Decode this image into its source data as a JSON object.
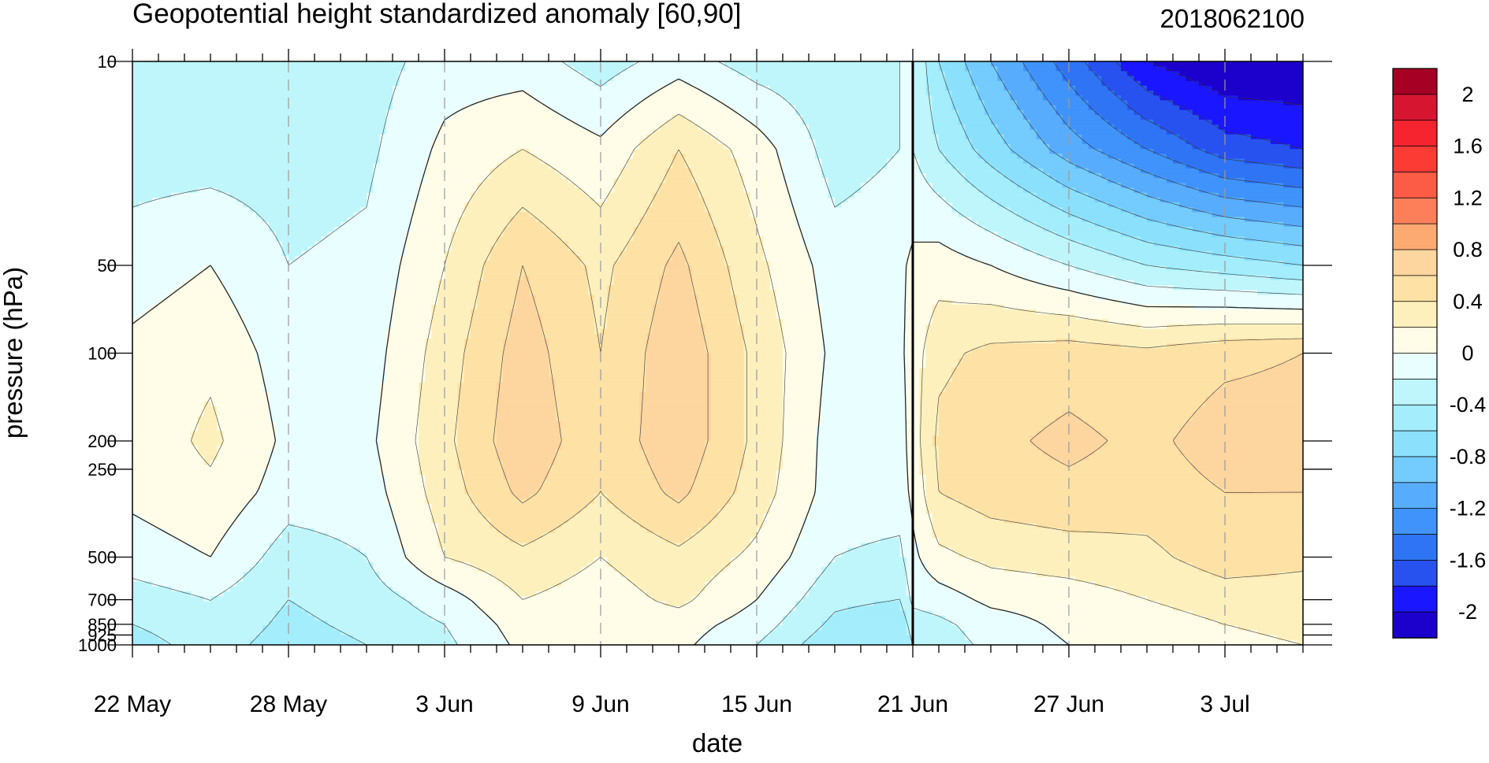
{
  "chart_data": {
    "type": "contour",
    "title": "Geopotential height standardized anomaly [60,90]",
    "date_label": "2018062100",
    "xlabel": "date",
    "ylabel": "pressure (hPa)",
    "x_ticks": [
      {
        "label": "22 May",
        "day": 0
      },
      {
        "label": "28 May",
        "day": 6
      },
      {
        "label": "3 Jun",
        "day": 12
      },
      {
        "label": "9 Jun",
        "day": 18
      },
      {
        "label": "15 Jun",
        "day": 24
      },
      {
        "label": "21 Jun",
        "day": 30
      },
      {
        "label": "27 Jun",
        "day": 36
      },
      {
        "label": "3 Jul",
        "day": 42
      }
    ],
    "x_range_days": [
      0,
      45
    ],
    "current_day": 30,
    "y_ticks": [
      {
        "label": "10",
        "p": 10
      },
      {
        "label": "50",
        "p": 50
      },
      {
        "label": "100",
        "p": 100
      },
      {
        "label": "200",
        "p": 200
      },
      {
        "label": "250",
        "p": 250
      },
      {
        "label": "500",
        "p": 500
      },
      {
        "label": "700",
        "p": 700
      },
      {
        "label": "850",
        "p": 850
      },
      {
        "label": "925",
        "p": 925
      },
      {
        "label": "1000",
        "p": 1000
      }
    ],
    "y_range_hpa": [
      10,
      1000
    ],
    "y_scale": "log",
    "levels": [
      -2.2,
      -2,
      -1.8,
      -1.6,
      -1.4,
      -1.2,
      -1,
      -0.8,
      -0.6,
      -0.4,
      -0.2,
      0,
      0.2,
      0.4,
      0.6,
      0.8,
      1,
      1.2,
      1.4,
      1.6,
      1.8,
      2,
      2.2
    ],
    "colorbar": {
      "colors": [
        "#1c00cc",
        "#1a16ff",
        "#2752f0",
        "#2f74f5",
        "#3f93fb",
        "#58acfd",
        "#74cbfd",
        "#8be0fc",
        "#a3edfd",
        "#bef6fc",
        "#e8feff",
        "#fffde8",
        "#fdf0bd",
        "#fde1a5",
        "#fdd59e",
        "#fdaa72",
        "#fd7f5a",
        "#fc5b46",
        "#fc3b35",
        "#f5242e",
        "#d61630",
        "#a60024"
      ],
      "labels": [
        {
          "text": "2",
          "value": 2
        },
        {
          "text": "1.6",
          "value": 1.6
        },
        {
          "text": "1.2",
          "value": 1.2
        },
        {
          "text": "0.8",
          "value": 0.8
        },
        {
          "text": "0.4",
          "value": 0.4
        },
        {
          "text": "0",
          "value": 0
        },
        {
          "text": "-0.4",
          "value": -0.4
        },
        {
          "text": "-0.8",
          "value": -0.8
        },
        {
          "text": "-1.2",
          "value": -1.2
        },
        {
          "text": "-1.6",
          "value": -1.6
        },
        {
          "text": "-2",
          "value": -2
        }
      ]
    },
    "field": {
      "t": [
        0,
        3,
        6,
        9,
        12,
        15,
        18,
        21,
        24,
        27,
        29.5,
        30,
        31,
        33,
        36,
        39,
        42,
        45
      ],
      "p": [
        10,
        20,
        50,
        100,
        200,
        300,
        500,
        700,
        850,
        1000
      ],
      "z": [
        [
          -0.3,
          -0.4,
          -0.35,
          -0.3,
          -0.1,
          -0.1,
          -0.3,
          -0.1,
          -0.3,
          -0.35,
          -0.2,
          -0.2,
          -0.6,
          -1.0,
          -1.5,
          -2.0,
          -2.2,
          -2.2
        ],
        [
          -0.3,
          -0.3,
          -0.3,
          -0.25,
          0.05,
          0.2,
          0.05,
          0.4,
          0.1,
          -0.3,
          -0.2,
          -0.2,
          -0.4,
          -0.7,
          -1.1,
          -1.4,
          -1.7,
          -1.8
        ],
        [
          -0.1,
          0.0,
          -0.2,
          -0.15,
          0.2,
          0.6,
          0.35,
          0.65,
          0.25,
          -0.1,
          -0.05,
          0.05,
          0.1,
          0.0,
          -0.2,
          -0.4,
          -0.5,
          -0.6
        ],
        [
          0.05,
          0.15,
          -0.1,
          -0.1,
          0.3,
          0.7,
          0.4,
          0.75,
          0.35,
          -0.05,
          -0.05,
          0.1,
          0.35,
          0.45,
          0.5,
          0.45,
          0.55,
          0.6
        ],
        [
          0.05,
          0.25,
          -0.05,
          -0.05,
          0.35,
          0.75,
          0.45,
          0.75,
          0.35,
          -0.1,
          -0.1,
          0.1,
          0.45,
          0.55,
          0.65,
          0.55,
          0.7,
          0.7
        ],
        [
          0.05,
          0.15,
          -0.1,
          -0.1,
          0.3,
          0.65,
          0.4,
          0.65,
          0.3,
          -0.1,
          -0.1,
          0.05,
          0.4,
          0.5,
          0.55,
          0.5,
          0.6,
          0.6
        ],
        [
          -0.1,
          0.0,
          -0.3,
          -0.2,
          0.2,
          0.35,
          0.2,
          0.35,
          0.15,
          -0.2,
          -0.25,
          -0.05,
          0.15,
          0.25,
          0.3,
          0.35,
          0.5,
          0.45
        ],
        [
          -0.3,
          -0.2,
          -0.4,
          -0.3,
          -0.1,
          0.2,
          0.1,
          0.25,
          0.0,
          -0.35,
          -0.4,
          -0.15,
          -0.1,
          0.05,
          0.1,
          0.2,
          0.3,
          0.3
        ],
        [
          -0.4,
          -0.25,
          -0.45,
          -0.35,
          -0.2,
          0.1,
          0.05,
          0.1,
          -0.1,
          -0.45,
          -0.55,
          -0.3,
          -0.25,
          -0.1,
          0.05,
          0.1,
          0.2,
          0.25
        ],
        [
          -0.5,
          -0.3,
          -0.5,
          -0.4,
          -0.25,
          0.05,
          0.0,
          0.05,
          -0.2,
          -0.55,
          -0.6,
          -0.4,
          -0.3,
          -0.15,
          0.0,
          0.05,
          0.15,
          0.2
        ]
      ]
    }
  }
}
